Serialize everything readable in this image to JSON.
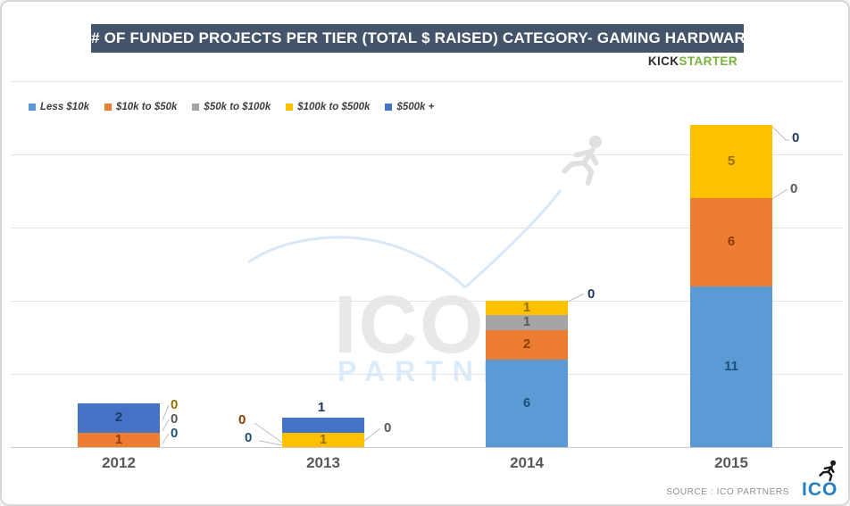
{
  "title": "# OF FUNDED PROJECTS PER TIER (TOTAL $ RAISED) CATEGORY- GAMING HARDWARE",
  "brand": {
    "kick": "KICK",
    "starter": "STARTER",
    "green": "#77b43f"
  },
  "watermark": {
    "line1": "ICO",
    "line2": "PARTNERS"
  },
  "footer": {
    "source": "SOURCE : ICO PARTNERS",
    "logo": "ICO"
  },
  "chart_data": {
    "type": "bar",
    "stacked": true,
    "title": "# OF FUNDED PROJECTS PER TIER (TOTAL $ RAISED) CATEGORY- GAMING HARDWARE",
    "categories": [
      "2012",
      "2013",
      "2014",
      "2015"
    ],
    "series": [
      {
        "name": "Less $10k",
        "color": "#5B9BD5",
        "label_color": "#1F4E79",
        "values": [
          0,
          0,
          6,
          11
        ]
      },
      {
        "name": "$10k to $50k",
        "color": "#ED7D31",
        "label_color": "#8B3C00",
        "values": [
          1,
          0,
          2,
          6
        ]
      },
      {
        "name": "$50k to $100k",
        "color": "#A5A5A5",
        "label_color": "#595959",
        "values": [
          0,
          0,
          1,
          0
        ]
      },
      {
        "name": "$100k to $500k",
        "color": "#FFC000",
        "label_color": "#937000",
        "values": [
          0,
          1,
          1,
          5
        ]
      },
      {
        "name": "$500k +",
        "color": "#4472C4",
        "label_color": "#1F3864",
        "values": [
          2,
          1,
          0,
          0
        ]
      }
    ],
    "ylim": [
      0,
      25
    ],
    "gridline_values": [
      5,
      10,
      15,
      20,
      25
    ],
    "grid": true,
    "legend_position": "top-left",
    "value_axis_labels_visible": false,
    "data_labels": "all values shown, zeros placed outside bars with leader lines"
  }
}
